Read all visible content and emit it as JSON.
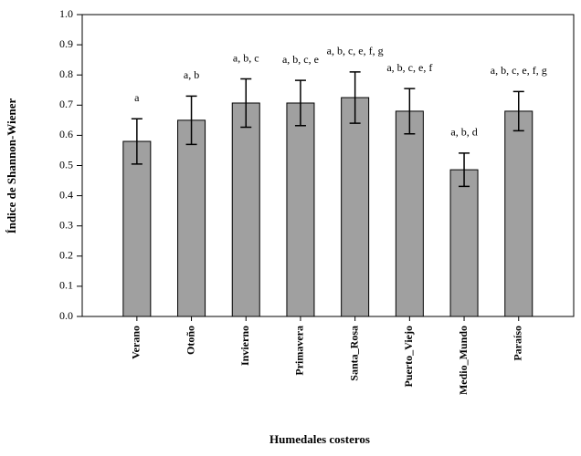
{
  "chart_data": {
    "type": "bar",
    "x_label": "Humedales costeros",
    "y_label": "Índice de Shannon-Wiener",
    "categories": [
      "Verano",
      "Otoño",
      "Invierno",
      "Primavera",
      "Santa_Rosa",
      "Puerto_Viejo",
      "Medio_Mundo",
      "Paraíso"
    ],
    "values": [
      0.58,
      0.65,
      0.707,
      0.707,
      0.725,
      0.68,
      0.486,
      0.68
    ],
    "errors": [
      0.075,
      0.08,
      0.08,
      0.075,
      0.085,
      0.075,
      0.055,
      0.065
    ],
    "annotations": [
      "a",
      "a, b",
      "a, b, c",
      "a, b, c, e",
      "a, b, c, e, f, g",
      "a, b, c, e, f",
      "a, b, d",
      "a, b, c, e, f, g"
    ],
    "color": "#a0a0a0",
    "ylim": [
      0,
      1
    ],
    "yticks": [
      {
        "value": 0,
        "label": "0.0"
      },
      {
        "value": 0.1,
        "label": "0.1"
      },
      {
        "value": 0.2,
        "label": "0.2"
      },
      {
        "value": 0.3,
        "label": "0.3"
      },
      {
        "value": 0.4,
        "label": "0.4"
      },
      {
        "value": 0.5,
        "label": "0.5"
      },
      {
        "value": 0.6,
        "label": "0.6"
      },
      {
        "value": 0.7,
        "label": "0.7"
      },
      {
        "value": 0.8,
        "label": "0.8"
      },
      {
        "value": 0.9,
        "label": "0.9"
      },
      {
        "value": 1,
        "label": "1.0"
      }
    ]
  }
}
